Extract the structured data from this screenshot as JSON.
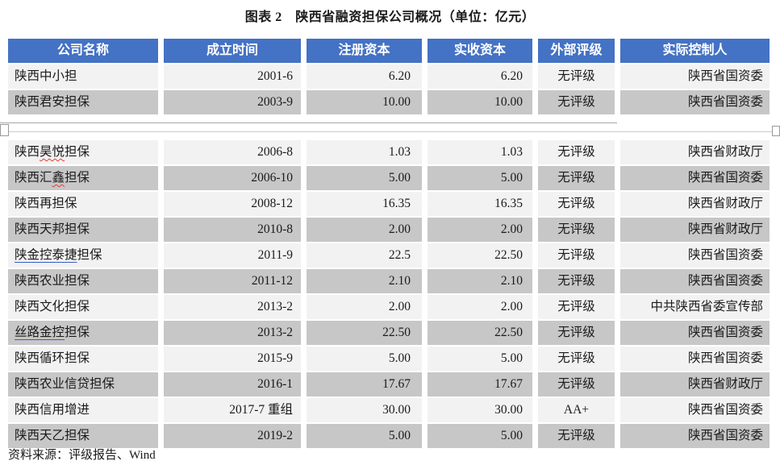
{
  "title": "图表 2　陕西省融资担保公司概况（单位：亿元）",
  "source_note": "资料来源：评级报告、Wind",
  "colors": {
    "header_bg": "#4472C4",
    "header_text": "#FFFFFF",
    "row_light": "#F2F2F2",
    "row_dark": "#C7C7C7"
  },
  "table": {
    "columns": [
      "公司名称",
      "成立时间",
      "注册资本",
      "实收资本",
      "外部评级",
      "实际控制人"
    ],
    "rows": [
      {
        "name_parts": [
          {
            "text": "陕西中小担"
          }
        ],
        "established": "2001-6",
        "registered_capital": "6.20",
        "paid_in_capital": "6.20",
        "external_rating": "无评级",
        "controller": "陕西省国资委",
        "shade": "light"
      },
      {
        "name_parts": [
          {
            "text": "陕西君安担保"
          }
        ],
        "established": "2003-9",
        "registered_capital": "10.00",
        "paid_in_capital": "10.00",
        "external_rating": "无评级",
        "controller": "陕西省国资委",
        "shade": "dark",
        "page_break_after": true
      },
      {
        "name_parts": [
          {
            "text": "陕西"
          },
          {
            "text": "昊悦",
            "style": "red-squiggle"
          },
          {
            "text": "担保"
          }
        ],
        "established": "2006-8",
        "registered_capital": "1.03",
        "paid_in_capital": "1.03",
        "external_rating": "无评级",
        "controller": "陕西省财政厅",
        "shade": "light"
      },
      {
        "name_parts": [
          {
            "text": "陕西汇"
          },
          {
            "text": "鑫",
            "style": "red-squiggle"
          },
          {
            "text": "担保"
          }
        ],
        "established": "2006-10",
        "registered_capital": "5.00",
        "paid_in_capital": "5.00",
        "external_rating": "无评级",
        "controller": "陕西省国资委",
        "shade": "dark"
      },
      {
        "name_parts": [
          {
            "text": "陕西再担保"
          }
        ],
        "established": "2008-12",
        "registered_capital": "16.35",
        "paid_in_capital": "16.35",
        "external_rating": "无评级",
        "controller": "陕西省财政厅",
        "shade": "light"
      },
      {
        "name_parts": [
          {
            "text": "陕西天邦担保"
          }
        ],
        "established": "2010-8",
        "registered_capital": "2.00",
        "paid_in_capital": "2.00",
        "external_rating": "无评级",
        "controller": "陕西省财政厅",
        "shade": "dark"
      },
      {
        "name_parts": [
          {
            "text": "陕金控泰捷",
            "style": "blue-underline"
          },
          {
            "text": "担保"
          }
        ],
        "established": "2011-9",
        "registered_capital": "22.5",
        "paid_in_capital": "22.50",
        "external_rating": "无评级",
        "controller": "陕西省国资委",
        "shade": "light"
      },
      {
        "name_parts": [
          {
            "text": "陕西农业担保"
          }
        ],
        "established": "2011-12",
        "registered_capital": "2.10",
        "paid_in_capital": "2.10",
        "external_rating": "无评级",
        "controller": "陕西省国资委",
        "shade": "dark"
      },
      {
        "name_parts": [
          {
            "text": "陕西文化担保"
          }
        ],
        "established": "2013-2",
        "registered_capital": "2.00",
        "paid_in_capital": "2.00",
        "external_rating": "无评级",
        "controller": "中共陕西省委宣传部",
        "shade": "light"
      },
      {
        "name_parts": [
          {
            "text": "丝路金控",
            "style": "blue-underline"
          },
          {
            "text": "担保"
          }
        ],
        "established": "2013-2",
        "registered_capital": "22.50",
        "paid_in_capital": "22.50",
        "external_rating": "无评级",
        "controller": "陕西省国资委",
        "shade": "dark"
      },
      {
        "name_parts": [
          {
            "text": "陕西循环担保"
          }
        ],
        "established": "2015-9",
        "registered_capital": "5.00",
        "paid_in_capital": "5.00",
        "external_rating": "无评级",
        "controller": "陕西省国资委",
        "shade": "light"
      },
      {
        "name_parts": [
          {
            "text": "陕西农业信贷担保"
          }
        ],
        "established": "2016-1",
        "registered_capital": "17.67",
        "paid_in_capital": "17.67",
        "external_rating": "无评级",
        "controller": "陕西省财政厅",
        "shade": "dark"
      },
      {
        "name_parts": [
          {
            "text": "陕西信用增进"
          }
        ],
        "established": "2017-7 重组",
        "registered_capital": "30.00",
        "paid_in_capital": "30.00",
        "external_rating": "AA+",
        "controller": "陕西省国资委",
        "shade": "light"
      },
      {
        "name_parts": [
          {
            "text": "陕西天乙担保"
          }
        ],
        "established": "2019-2",
        "registered_capital": "5.00",
        "paid_in_capital": "5.00",
        "external_rating": "无评级",
        "controller": "陕西省国资委",
        "shade": "dark"
      }
    ]
  }
}
